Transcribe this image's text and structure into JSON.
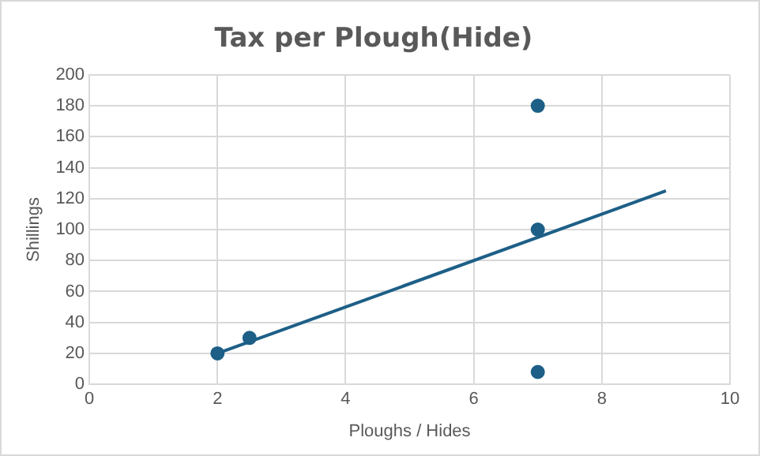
{
  "chart_data": {
    "type": "scatter",
    "title": "Tax per Plough(Hide)",
    "xlabel": "Ploughs / Hides",
    "ylabel": "Shillings",
    "series": [
      {
        "color": "#1d5f87",
        "x": [
          2,
          2.5,
          7,
          7,
          7
        ],
        "values": [
          20,
          30,
          180,
          100,
          8
        ]
      },
      {
        "type": "line",
        "marker": "none",
        "color": "#1d5f87",
        "x": [
          2,
          9
        ],
        "values": [
          20,
          125
        ]
      }
    ],
    "xlim": [
      0,
      10
    ],
    "xticks": [
      0,
      2,
      4,
      6,
      8,
      10
    ],
    "ylim": [
      0,
      200
    ],
    "yticks": [
      0,
      20,
      40,
      60,
      80,
      100,
      120,
      140,
      160,
      180,
      200
    ],
    "grid": true,
    "legend": false,
    "marker": "circle"
  }
}
